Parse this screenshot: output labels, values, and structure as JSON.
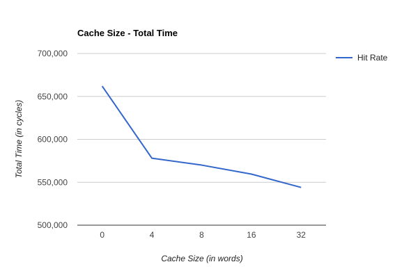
{
  "chart_data": {
    "type": "line",
    "title": "Cache Size - Total Time",
    "xlabel": "Cache Size (in words)",
    "ylabel": "Total Time (in cycles)",
    "categories": [
      "0",
      "4",
      "8",
      "16",
      "32"
    ],
    "series": [
      {
        "name": "Hit Rate",
        "color": "#3366cc",
        "values": [
          662000,
          578000,
          570000,
          559500,
          544000
        ]
      }
    ],
    "ylim": [
      500000,
      700000
    ],
    "yticks": [
      500000,
      550000,
      600000,
      650000,
      700000
    ],
    "ytick_labels": [
      "500,000",
      "550,000",
      "600,000",
      "650,000",
      "700,000"
    ],
    "grid": true,
    "legend_position": "right"
  }
}
